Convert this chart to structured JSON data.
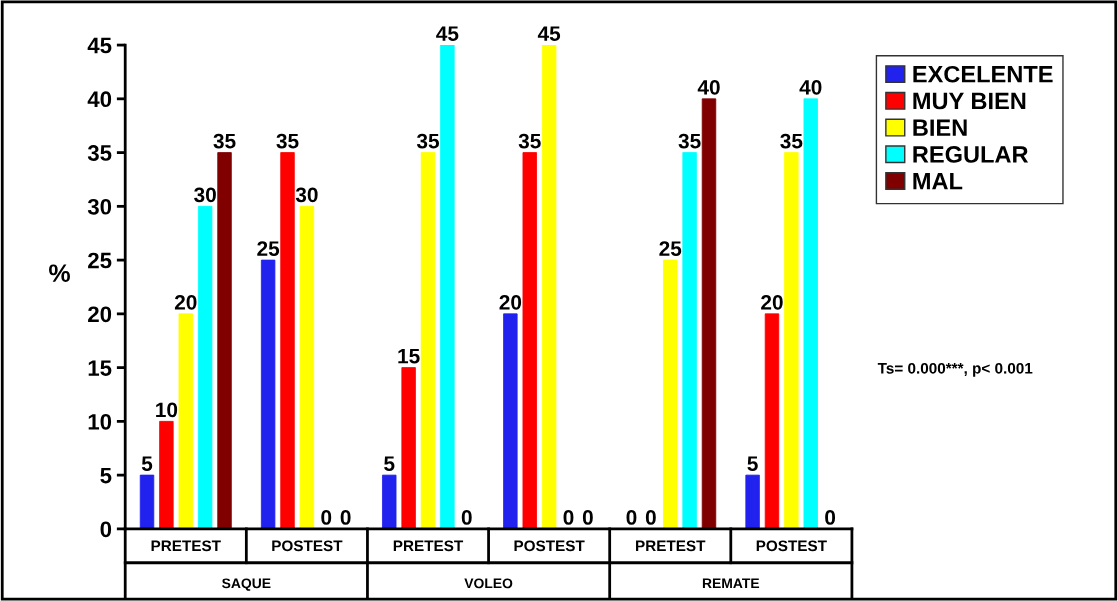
{
  "chart_data": {
    "type": "bar",
    "categories": [
      "PRETEST",
      "POSTEST",
      "PRETEST",
      "POSTEST",
      "PRETEST",
      "POSTEST"
    ],
    "series": [
      {
        "name": "EXCELENTE",
        "color": "#2222ee",
        "values": [
          5,
          25,
          5,
          20,
          0,
          5
        ]
      },
      {
        "name": "MUY BIEN",
        "color": "#ff0000",
        "values": [
          10,
          35,
          15,
          35,
          0,
          20
        ]
      },
      {
        "name": "BIEN",
        "color": "#ffff00",
        "values": [
          20,
          30,
          35,
          45,
          25,
          35
        ]
      },
      {
        "name": "REGULAR",
        "color": "#00ffff",
        "values": [
          30,
          0,
          45,
          0,
          35,
          40
        ]
      },
      {
        "name": "MAL",
        "color": "#800000",
        "values": [
          35,
          0,
          0,
          0,
          40,
          0
        ]
      }
    ],
    "ylabel": "%",
    "ylim": [
      0,
      45
    ],
    "yticks": [
      0,
      5,
      10,
      15,
      20,
      25,
      30,
      35,
      40,
      45
    ],
    "annotations": [
      "SAQUE",
      "VOLEO",
      "REMATE",
      "Ts= 0.000***, p< 0.001"
    ],
    "data_labels": true,
    "grid": false,
    "legend": "top right"
  }
}
